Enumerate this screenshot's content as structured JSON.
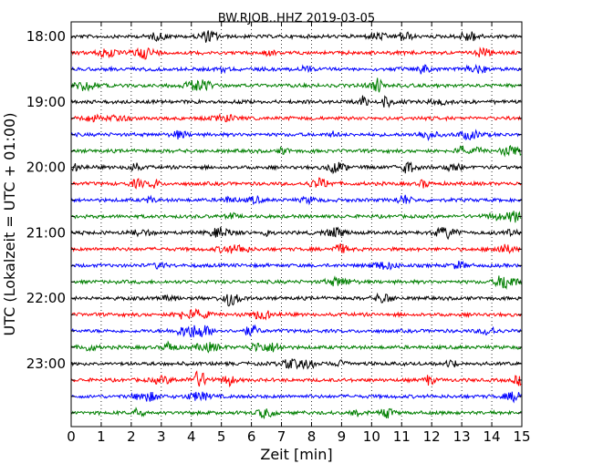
{
  "chart_data": {
    "type": "line",
    "title": "BW.RJOB..HHZ 2019-03-05",
    "xlabel": "Zeit  [min]",
    "ylabel": "UTC (Lokalzeit = UTC + 01:00)",
    "xlim": [
      0,
      15
    ],
    "x_ticks": [
      "0",
      "1",
      "2",
      "3",
      "4",
      "5",
      "6",
      "7",
      "8",
      "9",
      "10",
      "11",
      "12",
      "13",
      "14",
      "15"
    ],
    "y_tick_labels": [
      "18:00",
      "19:00",
      "20:00",
      "21:00",
      "22:00",
      "23:00"
    ],
    "grid": {
      "vertical_dotted": true
    },
    "trace_colors": [
      "#000000",
      "#ff0000",
      "#0000ff",
      "#007f00"
    ],
    "traces": [
      "18:00",
      "18:15",
      "18:30",
      "18:45",
      "19:00",
      "19:15",
      "19:30",
      "19:45",
      "20:00",
      "20:15",
      "20:30",
      "20:45",
      "21:00",
      "21:15",
      "21:30",
      "21:45",
      "22:00",
      "22:15",
      "22:30",
      "22:45",
      "23:00",
      "23:15",
      "23:30",
      "23:45"
    ]
  }
}
